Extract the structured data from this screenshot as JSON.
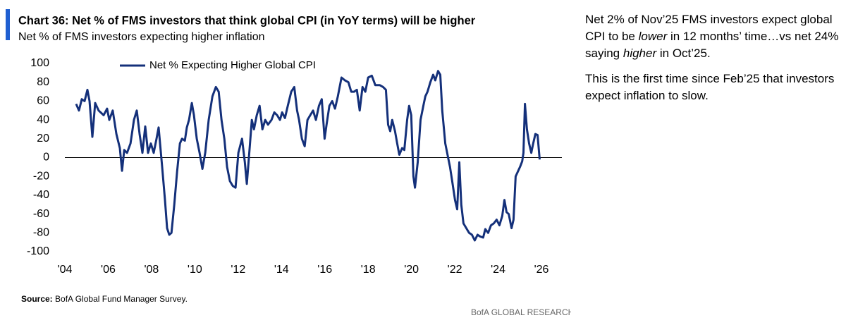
{
  "chart_data": {
    "type": "line",
    "title": "Chart 36: Net % of FMS investors that think global CPI (in YoY terms) will be higher",
    "subtitle": "Net % of FMS investors expecting higher inflation",
    "source_label": "Source:",
    "source": "BofA Global Fund Manager Survey.",
    "brand": "BofA GLOBAL RESEARCH",
    "x": [
      2004.52,
      2004.65,
      2004.78,
      2004.91,
      2005.04,
      2005.14,
      2005.27,
      2005.4,
      2005.56,
      2005.79,
      2005.95,
      2006.05,
      2006.21,
      2006.38,
      2006.54,
      2006.64,
      2006.74,
      2006.87,
      2007.03,
      2007.19,
      2007.32,
      2007.45,
      2007.58,
      2007.71,
      2007.84,
      2007.97,
      2008.1,
      2008.23,
      2008.33,
      2008.49,
      2008.62,
      2008.72,
      2008.82,
      2008.92,
      2009.05,
      2009.18,
      2009.31,
      2009.41,
      2009.54,
      2009.63,
      2009.73,
      2009.86,
      2009.96,
      2010.09,
      2010.22,
      2010.35,
      2010.48,
      2010.64,
      2010.81,
      2010.97,
      2011.1,
      2011.23,
      2011.36,
      2011.49,
      2011.62,
      2011.75,
      2011.88,
      2012.01,
      2012.18,
      2012.31,
      2012.4,
      2012.53,
      2012.63,
      2012.73,
      2012.86,
      2012.99,
      2013.12,
      2013.25,
      2013.38,
      2013.54,
      2013.67,
      2013.8,
      2013.93,
      2014.03,
      2014.16,
      2014.29,
      2014.45,
      2014.59,
      2014.72,
      2014.81,
      2014.94,
      2015.07,
      2015.2,
      2015.33,
      2015.46,
      2015.59,
      2015.73,
      2015.86,
      2015.99,
      2016.08,
      2016.21,
      2016.34,
      2016.47,
      2016.6,
      2016.77,
      2016.93,
      2017.09,
      2017.22,
      2017.35,
      2017.48,
      2017.61,
      2017.74,
      2017.87,
      2018.0,
      2018.17,
      2018.33,
      2018.53,
      2018.69,
      2018.82,
      2018.92,
      2019.02,
      2019.11,
      2019.24,
      2019.34,
      2019.44,
      2019.57,
      2019.67,
      2019.8,
      2019.89,
      2019.99,
      2020.09,
      2020.16,
      2020.29,
      2020.42,
      2020.55,
      2020.64,
      2020.74,
      2020.87,
      2021.0,
      2021.1,
      2021.23,
      2021.33,
      2021.42,
      2021.56,
      2021.69,
      2021.78,
      2021.88,
      2022.01,
      2022.11,
      2022.21,
      2022.3,
      2022.4,
      2022.53,
      2022.66,
      2022.79,
      2022.92,
      2023.05,
      2023.18,
      2023.31,
      2023.41,
      2023.54,
      2023.67,
      2023.8,
      2023.93,
      2024.06,
      2024.19,
      2024.29,
      2024.39,
      2024.49,
      2024.62,
      2024.71,
      2024.81,
      2024.91,
      2025.01,
      2025.11,
      2025.17,
      2025.24,
      2025.33,
      2025.43,
      2025.53,
      2025.62,
      2025.72,
      2025.82,
      2025.92
    ],
    "series": [
      {
        "name": "Net % Expecting Higher Global CPI",
        "color": "#14307a",
        "values": [
          57,
          50,
          62,
          60,
          72,
          60,
          22,
          58,
          50,
          45,
          52,
          40,
          50,
          25,
          10,
          -14,
          8,
          5,
          15,
          40,
          50,
          25,
          5,
          33,
          5,
          15,
          5,
          20,
          32,
          -10,
          -45,
          -75,
          -82,
          -80,
          -50,
          -15,
          15,
          20,
          18,
          32,
          40,
          58,
          45,
          20,
          5,
          -12,
          5,
          40,
          65,
          75,
          70,
          40,
          20,
          -10,
          -25,
          -30,
          -32,
          5,
          20,
          -5,
          -28,
          10,
          40,
          30,
          45,
          55,
          30,
          40,
          35,
          40,
          48,
          45,
          40,
          48,
          42,
          55,
          70,
          75,
          50,
          40,
          20,
          12,
          40,
          45,
          50,
          40,
          55,
          62,
          20,
          35,
          55,
          60,
          52,
          65,
          85,
          82,
          80,
          70,
          70,
          72,
          50,
          75,
          70,
          85,
          87,
          77,
          77,
          75,
          72,
          35,
          28,
          40,
          28,
          15,
          3,
          10,
          8,
          40,
          55,
          45,
          -20,
          -32,
          -5,
          40,
          55,
          65,
          70,
          80,
          88,
          82,
          92,
          88,
          50,
          15,
          0,
          -10,
          -25,
          -45,
          -55,
          -5,
          -50,
          -70,
          -75,
          -80,
          -82,
          -88,
          -82,
          -84,
          -85,
          -76,
          -80,
          -72,
          -70,
          -66,
          -72,
          -62,
          -45,
          -58,
          -60,
          -75,
          -66,
          -20,
          -15,
          -10,
          -4,
          5,
          57,
          30,
          15,
          5,
          15,
          25,
          24,
          -2
        ]
      }
    ],
    "xlim": [
      2004,
      2026
    ],
    "xticks": [
      {
        "value": 2004,
        "label": "'04"
      },
      {
        "value": 2006,
        "label": "'06"
      },
      {
        "value": 2008,
        "label": "'08"
      },
      {
        "value": 2010,
        "label": "'10"
      },
      {
        "value": 2012,
        "label": "'12"
      },
      {
        "value": 2014,
        "label": "'14"
      },
      {
        "value": 2016,
        "label": "'16"
      },
      {
        "value": 2018,
        "label": "'18"
      },
      {
        "value": 2020,
        "label": "'20"
      },
      {
        "value": 2022,
        "label": "'22"
      },
      {
        "value": 2024,
        "label": "'24"
      },
      {
        "value": 2026,
        "label": "'26"
      }
    ],
    "ylim": [
      -100,
      100
    ],
    "yticks": [
      -100,
      -80,
      -60,
      -40,
      -20,
      0,
      20,
      40,
      60,
      80,
      100
    ],
    "zero_line": true,
    "legend": "top-left"
  },
  "notes": [
    [
      "Net 2% of Nov’25 FMS investors expect global CPI to be ",
      {
        "italic": "lower"
      },
      " in 12 months’ time…vs net 24% saying ",
      {
        "italic": "higher"
      },
      " in Oct’25."
    ],
    [
      "This is the first time since Feb’25 that investors expect inflation to slow."
    ]
  ]
}
